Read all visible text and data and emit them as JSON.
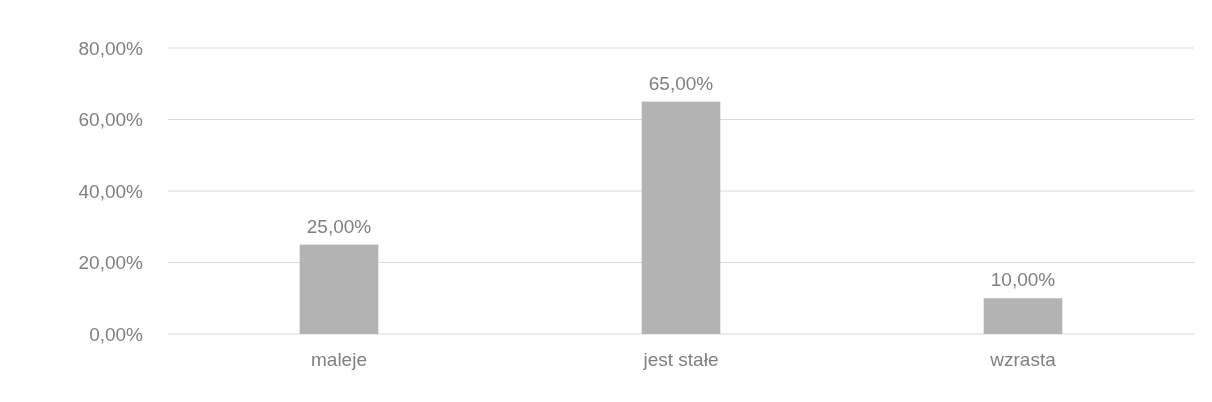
{
  "chart_data": {
    "type": "bar",
    "categories": [
      "maleje",
      "jest stałe",
      "wzrasta"
    ],
    "values": [
      25,
      65,
      10
    ],
    "color": "#b3b3b3",
    "value_labels": [
      "25,00%",
      "65,00%",
      "10,00%"
    ],
    "ylim": [
      0,
      80
    ],
    "yticks": [
      {
        "value": 0,
        "label": "0,00%"
      },
      {
        "value": 20,
        "label": "20,00%"
      },
      {
        "value": 40,
        "label": "40,00%"
      },
      {
        "value": 60,
        "label": "60,00%"
      },
      {
        "value": 80,
        "label": "80,00%"
      }
    ],
    "grid": "y"
  }
}
